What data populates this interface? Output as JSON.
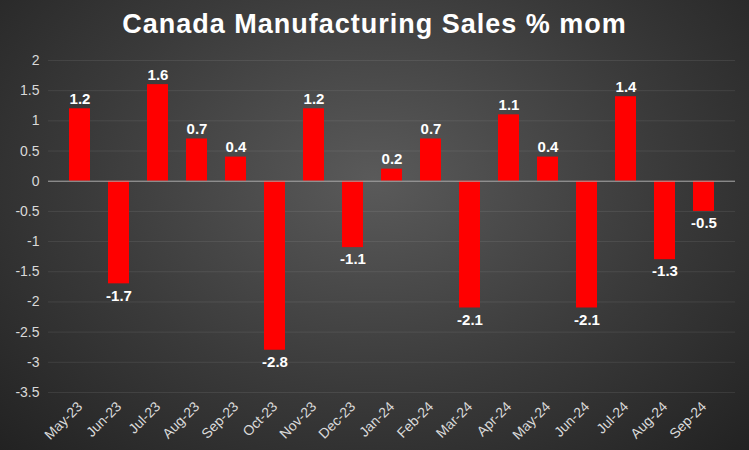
{
  "chart_data": {
    "type": "bar",
    "title": "Canada Manufacturing Sales % mom",
    "categories": [
      "May-23",
      "Jun-23",
      "Jul-23",
      "Aug-23",
      "Sep-23",
      "Oct-23",
      "Nov-23",
      "Dec-23",
      "Jan-24",
      "Feb-24",
      "Mar-24",
      "Apr-24",
      "May-24",
      "Jun-24",
      "Jul-24",
      "Aug-24",
      "Sep-24"
    ],
    "values": [
      1.2,
      -1.7,
      1.6,
      0.7,
      0.4,
      -2.8,
      1.2,
      -1.1,
      0.2,
      0.7,
      -2.1,
      1.1,
      0.4,
      -2.1,
      1.4,
      -1.3,
      -0.5
    ],
    "color": "#ff0000",
    "ylim": [
      -3.5,
      2
    ],
    "yticks": [
      -3.5,
      -3,
      -2.5,
      -2,
      -1.5,
      -1,
      -0.5,
      0,
      0.5,
      1,
      1.5,
      2
    ],
    "grid": true,
    "data_labels": true
  }
}
